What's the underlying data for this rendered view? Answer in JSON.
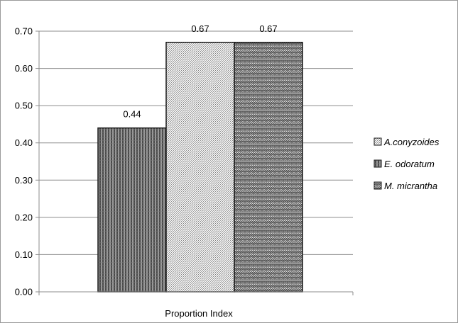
{
  "chart_data": {
    "type": "bar",
    "title": "",
    "xlabel": "Proportion Index",
    "ylabel": "",
    "ylim": [
      0,
      0.7
    ],
    "ytick_step": 0.1,
    "ytick_labels": [
      "0.00",
      "0.10",
      "0.20",
      "0.30",
      "0.40",
      "0.50",
      "0.60",
      "0.70"
    ],
    "grid": true,
    "legend_position": "right",
    "categories": [
      "Proportion Index"
    ],
    "series": [
      {
        "name": "E. odoratum",
        "legend_label": "E. odoratum",
        "value": 0.44,
        "label": "0.44",
        "pattern": "vertical-stripes",
        "color": "#6e6e6e"
      },
      {
        "name": "A.conyzoides",
        "legend_label": "A.conyzoides",
        "value": 0.67,
        "label": "0.67",
        "pattern": "fine-dots",
        "color": "#d6d6d6"
      },
      {
        "name": "M. micrantha",
        "legend_label": "M. micrantha",
        "value": 0.67,
        "label": "0.67",
        "pattern": "zigzag",
        "color": "#8a8a8a"
      }
    ],
    "legend_order": [
      "A.conyzoides",
      "E. odoratum",
      "M. micrantha"
    ]
  }
}
